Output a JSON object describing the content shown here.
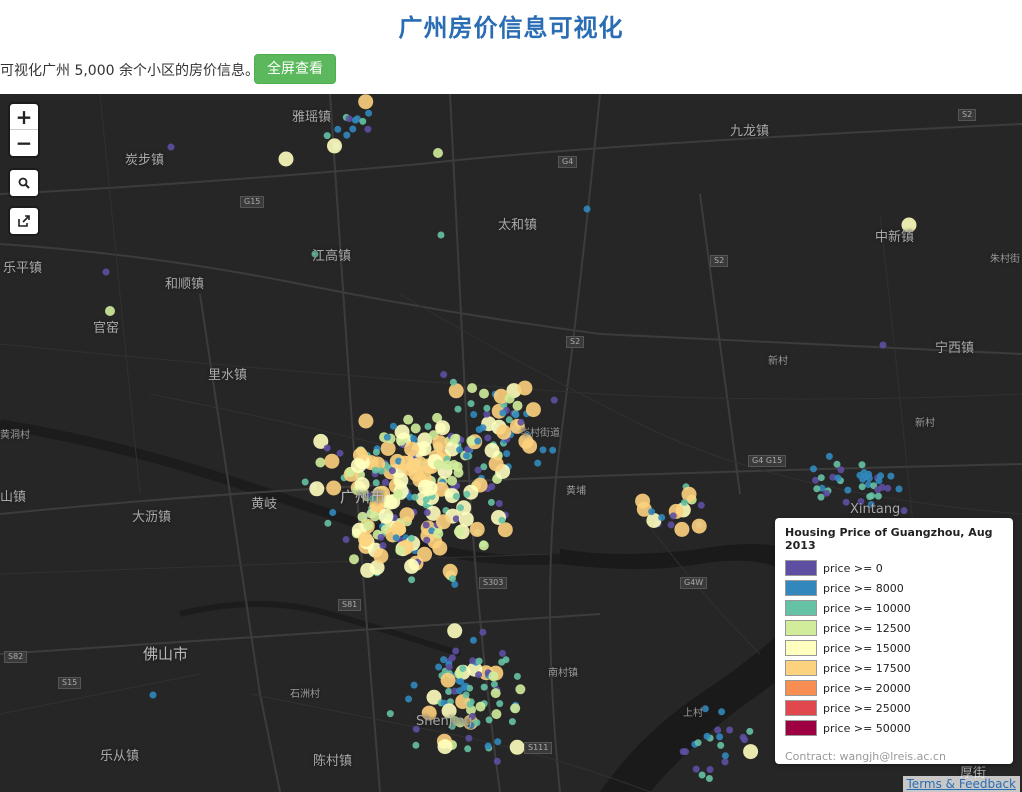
{
  "page": {
    "title": "广州房价信息可视化",
    "description": "可视化广州 5,000 余个小区的房价信息。",
    "fullscreen_label": "全屏查看"
  },
  "map_controls": {
    "zoom_in": "+",
    "zoom_out": "−",
    "search": "⚲",
    "share": "⇪"
  },
  "places": [
    {
      "name": "雅瑶镇",
      "size": "normal"
    },
    {
      "name": "九龙镇",
      "size": "normal"
    },
    {
      "name": "炭步镇",
      "size": "normal"
    },
    {
      "name": "太和镇",
      "size": "normal"
    },
    {
      "name": "中新镇",
      "size": "normal"
    },
    {
      "name": "乐平镇",
      "size": "normal"
    },
    {
      "name": "江高镇",
      "size": "normal"
    },
    {
      "name": "和顺镇",
      "size": "normal"
    },
    {
      "name": "官窑",
      "size": "normal"
    },
    {
      "name": "宁西镇",
      "size": "normal"
    },
    {
      "name": "里水镇",
      "size": "normal"
    },
    {
      "name": "新村",
      "size": "small"
    },
    {
      "name": "新村",
      "size": "small"
    },
    {
      "name": "黄洞村",
      "size": "small"
    },
    {
      "name": "山镇",
      "size": "normal"
    },
    {
      "name": "黄岐",
      "size": "normal"
    },
    {
      "name": "广州市",
      "size": "big"
    },
    {
      "name": "大沥镇",
      "size": "normal"
    },
    {
      "name": "Xintang",
      "size": "normal"
    },
    {
      "name": "佛山市",
      "size": "big"
    },
    {
      "name": "石洲村",
      "size": "small"
    },
    {
      "name": "Shenjing",
      "size": "normal"
    },
    {
      "name": "上村",
      "size": "small"
    },
    {
      "name": "乐从镇",
      "size": "normal"
    },
    {
      "name": "陈村镇",
      "size": "normal"
    },
    {
      "name": "朱村街",
      "size": "small"
    },
    {
      "name": "厚街",
      "size": "normal"
    },
    {
      "name": "岑村街道",
      "size": "small"
    },
    {
      "name": "南村镇",
      "size": "small"
    },
    {
      "name": "黄埔",
      "size": "small"
    }
  ],
  "road_shields": [
    "S2",
    "G4",
    "G15",
    "S2",
    "S2",
    "G4 G15",
    "S303",
    "S81",
    "G4W",
    "S82",
    "S15",
    "S111"
  ],
  "legend": {
    "title": "Housing Price of Guangzhou, Aug 2013",
    "items": [
      {
        "label": "price >= 0",
        "color": "#5e4fa2"
      },
      {
        "label": "price >= 8000",
        "color": "#3288bd"
      },
      {
        "label": "price >= 10000",
        "color": "#66c2a5"
      },
      {
        "label": "price >= 12500",
        "color": "#d1ed9c"
      },
      {
        "label": "price >= 15000",
        "color": "#ffffbf"
      },
      {
        "label": "price >= 17500",
        "color": "#fdd27e"
      },
      {
        "label": "price >= 20000",
        "color": "#f98e52"
      },
      {
        "label": "price >= 25000",
        "color": "#e0484d"
      },
      {
        "label": "price >= 50000",
        "color": "#9e0142"
      }
    ],
    "contact": "Contract: wangjh@lreis.ac.cn"
  },
  "attribution": "Terms & Feedback"
}
